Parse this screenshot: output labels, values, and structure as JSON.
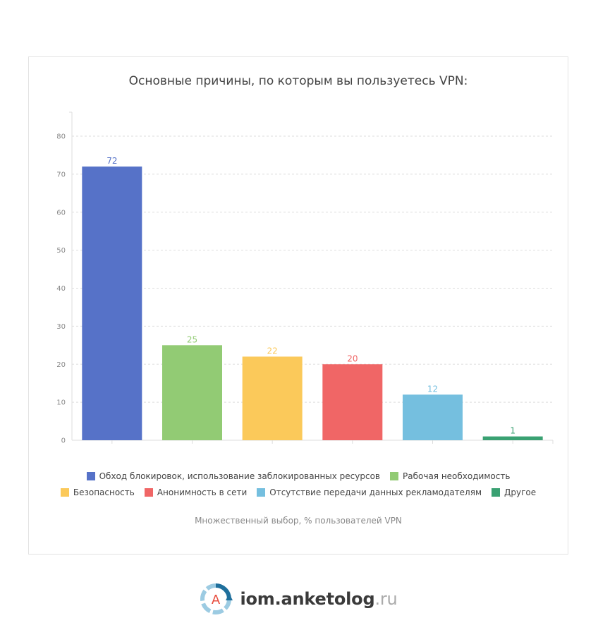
{
  "chart_data": {
    "type": "bar",
    "title": "Основные причины, по которым вы пользуетесь VPN:",
    "categories": [
      "Обход блокировок, использование заблокированных ресурсов",
      "Рабочая необходимость",
      "Безопасность",
      "Анонимность в сети",
      "Отсутствие передачи данных рекламодателям",
      "Другое"
    ],
    "values": [
      72,
      25,
      22,
      20,
      12,
      1
    ],
    "colors": [
      "#5672c8",
      "#92cb74",
      "#fbc95a",
      "#f06666",
      "#75bfdf",
      "#3aa172"
    ],
    "ylim": [
      0,
      80
    ],
    "yticks": [
      0,
      10,
      20,
      30,
      40,
      50,
      60,
      70,
      80
    ],
    "grid": true,
    "legend_position": "bottom",
    "note": "Множественный выбор, % пользователей VPN"
  },
  "footer": {
    "logo_icon": "anketolog-logo-icon",
    "logo_letter": "A",
    "site_main": "iom.anketolog",
    "site_tld": ".ru"
  }
}
